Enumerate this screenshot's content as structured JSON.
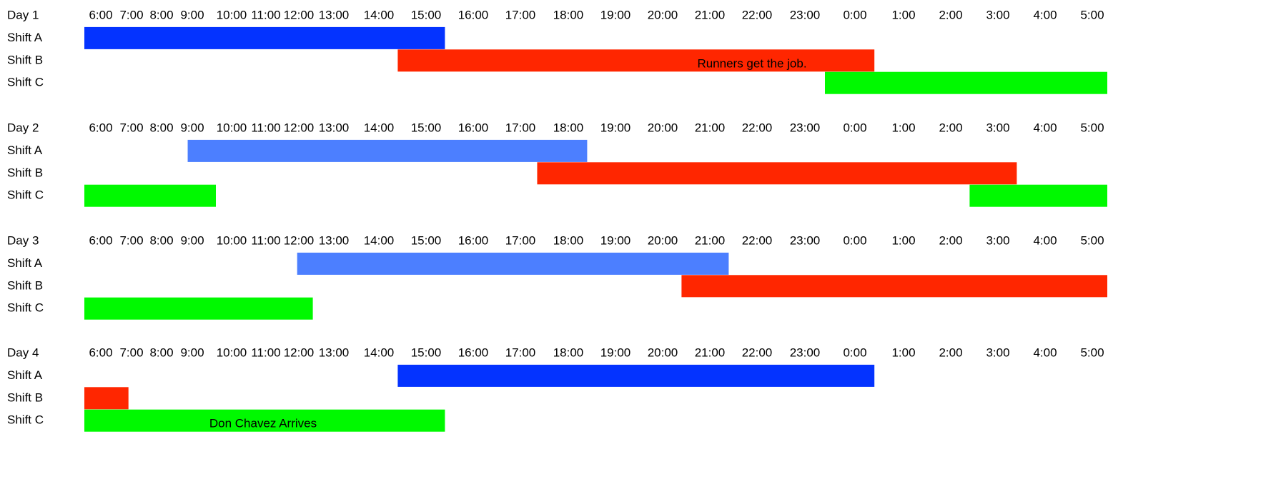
{
  "chart_data": {
    "type": "bar",
    "hours": [
      "6:00",
      "7:00",
      "8:00",
      "9:00",
      "10:00",
      "11:00",
      "12:00",
      "13:00",
      "14:00",
      "15:00",
      "16:00",
      "17:00",
      "18:00",
      "19:00",
      "20:00",
      "21:00",
      "22:00",
      "23:00",
      "0:00",
      "1:00",
      "2:00",
      "3:00",
      "4:00",
      "5:00"
    ],
    "days": [
      {
        "label": "Day 1",
        "shifts": [
          {
            "label": "Shift A",
            "start": 6.0,
            "end": 15.4,
            "color": "#0433ff"
          },
          {
            "label": "Shift B",
            "start": 14.4,
            "end": 24.4,
            "color": "#ff2600",
            "annotation": "Runners get the job."
          },
          {
            "label": "Shift C",
            "start": 23.4,
            "end": 29.9,
            "color": "#00f900"
          }
        ]
      },
      {
        "label": "Day 2",
        "shifts": [
          {
            "label": "Shift A",
            "start": 8.85,
            "end": 18.4,
            "color": "#4c7fff"
          },
          {
            "label": "Shift B",
            "start": 17.35,
            "end": 27.4,
            "color": "#ff2600"
          },
          {
            "label": "Shift C",
            "start": 6.0,
            "end": 9.6,
            "color": "#00f900",
            "start2": 26.4,
            "end2": 29.9
          }
        ]
      },
      {
        "label": "Day 3",
        "shifts": [
          {
            "label": "Shift A",
            "start": 11.95,
            "end": 21.4,
            "color": "#4c7fff"
          },
          {
            "label": "Shift B",
            "start": 20.4,
            "end": 29.9,
            "color": "#ff2600"
          },
          {
            "label": "Shift C",
            "start": 6.0,
            "end": 12.4,
            "color": "#00f900"
          }
        ]
      },
      {
        "label": "Day 4",
        "shifts": [
          {
            "label": "Shift A",
            "start": 14.4,
            "end": 24.4,
            "color": "#0433ff"
          },
          {
            "label": "Shift B",
            "start": 6.0,
            "end": 6.9,
            "color": "#ff2600"
          },
          {
            "label": "Shift C",
            "start": 6.0,
            "end": 15.4,
            "color": "#00f900",
            "annotation": "Don Chavez Arrives"
          }
        ]
      }
    ]
  }
}
